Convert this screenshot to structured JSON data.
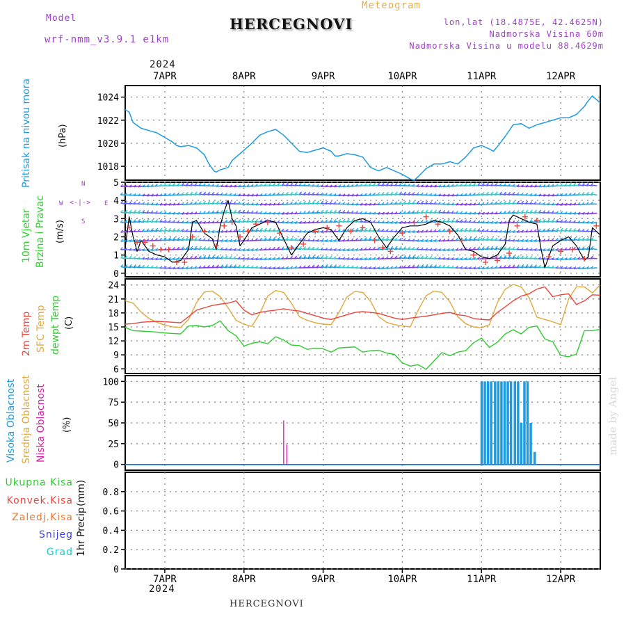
{
  "header": {
    "model_label": "Model",
    "model_name": "wrf-nmm_v3.9.1 e1km",
    "station_title": "HERCEGNOVI",
    "product": "Meteogram",
    "lonlat": "lon,lat (18.4875E, 42.4625N)",
    "elevation": "Nadmorska Visina 60m",
    "model_elevation": "Nadmorska Visina u modelu 88.4629m",
    "footer_station": "HERCEGNOVI",
    "credit": "made by Angel"
  },
  "colors": {
    "pressure": "#1e9be0",
    "temp2m": "#e8453c",
    "sfc_temp": "#e0a83c",
    "dewpt": "#2fcc2f",
    "cloud_high": "#1e9be0",
    "cloud_mid": "#e0a83c",
    "cloud_low": "#d21ea0",
    "rain_total": "#2fcc2f",
    "rain_conv": "#e8453c",
    "rain_frz": "#f07830",
    "snow": "#4040e0",
    "hail": "#20c8c8",
    "wind_line": "#000000",
    "gust_marker": "#e8453c"
  },
  "chart_data": [
    {
      "type": "line",
      "panel": "pressure",
      "ylabel": "Pritisak na nivou mora",
      "unit": "(hPa)",
      "ylim": [
        1016.8,
        1025.0
      ],
      "yticks": [
        1018,
        1020,
        1022,
        1024
      ],
      "grid": true,
      "x_top_year": "2024",
      "x_ticks": [
        "7APR",
        "8APR",
        "9APR",
        "10APR",
        "11APR",
        "12APR"
      ],
      "x_range_days": [
        6.5,
        12.5
      ],
      "series": [
        {
          "x": [
            6.5,
            6.55,
            6.6,
            6.7,
            6.8,
            6.9,
            7.0,
            7.1,
            7.15,
            7.2,
            7.3,
            7.4,
            7.5,
            7.55,
            7.62,
            7.65,
            7.7,
            7.8,
            7.85,
            7.9,
            8.0,
            8.1,
            8.2,
            8.3,
            8.4,
            8.5,
            8.6,
            8.7,
            8.8,
            8.9,
            9.0,
            9.1,
            9.15,
            9.2,
            9.3,
            9.4,
            9.5,
            9.6,
            9.7,
            9.8,
            9.9,
            10.0,
            10.1,
            10.15,
            10.2,
            10.3,
            10.4,
            10.5,
            10.6,
            10.7,
            10.8,
            10.9,
            11.0,
            11.1,
            11.15,
            11.2,
            11.3,
            11.4,
            11.5,
            11.6,
            11.7,
            11.8,
            11.9,
            12.0,
            12.1,
            12.2,
            12.3,
            12.35,
            12.4,
            12.5
          ],
          "values": [
            1022.9,
            1022.7,
            1021.8,
            1021.3,
            1021.1,
            1020.9,
            1020.5,
            1020.1,
            1019.8,
            1019.7,
            1019.8,
            1019.6,
            1019.0,
            1018.3,
            1017.6,
            1017.5,
            1017.7,
            1017.9,
            1018.5,
            1018.8,
            1019.4,
            1020.0,
            1020.7,
            1021.0,
            1021.2,
            1020.7,
            1020.0,
            1019.3,
            1019.2,
            1019.4,
            1019.6,
            1019.3,
            1018.9,
            1018.9,
            1019.1,
            1019.0,
            1018.8,
            1017.9,
            1017.6,
            1017.9,
            1017.6,
            1017.3,
            1016.9,
            1016.8,
            1017.1,
            1017.8,
            1018.2,
            1018.2,
            1018.4,
            1018.2,
            1018.8,
            1019.6,
            1019.8,
            1019.5,
            1019.3,
            1019.7,
            1020.6,
            1021.6,
            1021.7,
            1021.3,
            1021.6,
            1021.8,
            1022.0,
            1022.2,
            1022.2,
            1022.5,
            1023.2,
            1023.7,
            1024.1,
            1023.5
          ]
        }
      ]
    },
    {
      "type": "line",
      "panel": "wind",
      "ylabel": "10m Vjetar",
      "ylabel2": "Brzina i Pravac",
      "unit": "(m/s)",
      "compass": {
        "north": "N",
        "south": "S",
        "west": "W",
        "east": "E"
      },
      "ylim": [
        -0.2,
        5.0
      ],
      "yticks": [
        0,
        1,
        2,
        3,
        4,
        5
      ],
      "grid": true,
      "series": [
        {
          "name": "speed",
          "x": [
            6.5,
            6.55,
            6.6,
            6.65,
            6.7,
            6.8,
            6.9,
            7.0,
            7.1,
            7.2,
            7.3,
            7.35,
            7.4,
            7.5,
            7.6,
            7.65,
            7.7,
            7.75,
            7.8,
            7.85,
            7.9,
            7.95,
            8.0,
            8.1,
            8.2,
            8.3,
            8.4,
            8.5,
            8.6,
            8.7,
            8.8,
            8.9,
            9.0,
            9.1,
            9.2,
            9.3,
            9.4,
            9.5,
            9.6,
            9.7,
            9.8,
            9.9,
            10.0,
            10.1,
            10.2,
            10.3,
            10.4,
            10.5,
            10.6,
            10.7,
            10.8,
            10.9,
            11.0,
            11.1,
            11.2,
            11.3,
            11.35,
            11.4,
            11.5,
            11.6,
            11.7,
            11.75,
            11.8,
            11.9,
            12.0,
            12.1,
            12.2,
            12.3,
            12.35,
            12.4,
            12.5
          ],
          "values": [
            1.4,
            3.1,
            2.0,
            1.2,
            1.8,
            1.2,
            1.0,
            0.9,
            0.6,
            0.7,
            1.3,
            2.8,
            2.9,
            2.2,
            1.9,
            1.3,
            2.6,
            3.4,
            4.0,
            3.0,
            2.6,
            1.5,
            1.8,
            2.5,
            2.7,
            2.9,
            2.8,
            1.9,
            1.0,
            1.6,
            2.2,
            2.4,
            2.5,
            2.4,
            1.8,
            2.5,
            2.9,
            3.0,
            2.8,
            2.0,
            1.4,
            2.0,
            2.5,
            2.6,
            2.6,
            2.7,
            2.9,
            2.8,
            2.6,
            2.1,
            1.3,
            1.2,
            0.9,
            0.8,
            1.0,
            1.6,
            2.9,
            3.2,
            3.0,
            2.8,
            2.7,
            1.4,
            0.3,
            1.5,
            1.8,
            2.0,
            1.5,
            0.7,
            0.9,
            2.5,
            2.1
          ]
        },
        {
          "name": "gust",
          "x": [
            6.55,
            6.65,
            6.75,
            6.85,
            6.95,
            7.05,
            7.15,
            7.25,
            7.35,
            7.5,
            7.65,
            7.75,
            7.85,
            7.95,
            8.05,
            8.15,
            8.3,
            8.45,
            8.6,
            8.75,
            8.9,
            9.05,
            9.2,
            9.35,
            9.5,
            9.65,
            9.75,
            9.85,
            10.0,
            10.15,
            10.3,
            10.45,
            10.6,
            10.75,
            10.9,
            11.05,
            11.2,
            11.35,
            11.45,
            11.55,
            11.7,
            11.85,
            12.0,
            12.15,
            12.3,
            12.45
          ],
          "values": [
            2.5,
            1.7,
            1.7,
            1.5,
            1.3,
            1.3,
            0.6,
            0.6,
            2.0,
            2.3,
            1.5,
            2.6,
            2.8,
            2.0,
            2.3,
            2.7,
            2.8,
            2.2,
            1.4,
            1.6,
            2.3,
            2.5,
            2.6,
            2.3,
            2.5,
            1.8,
            1.4,
            1.2,
            2.2,
            2.8,
            3.1,
            2.7,
            2.3,
            1.8,
            1.0,
            0.6,
            0.7,
            1.1,
            2.6,
            3.1,
            2.9,
            0.9,
            1.2,
            1.3,
            0.8,
            2.6
          ]
        }
      ]
    },
    {
      "type": "line",
      "panel": "temperature",
      "ylabel": "2m Temp",
      "ylabel2": "SFC Temp",
      "ylabel3": "dewpt Temp",
      "unit": "(C)",
      "ylim": [
        5.0,
        25.3
      ],
      "yticks": [
        6,
        9,
        12,
        15,
        18,
        21,
        24
      ],
      "grid": true,
      "series": [
        {
          "name": "2m Temp",
          "x": [
            6.5,
            6.6,
            6.7,
            6.8,
            6.9,
            7.0,
            7.1,
            7.2,
            7.3,
            7.4,
            7.5,
            7.6,
            7.7,
            7.8,
            7.9,
            8.0,
            8.1,
            8.2,
            8.3,
            8.4,
            8.5,
            8.6,
            8.7,
            8.8,
            8.9,
            9.0,
            9.1,
            9.2,
            9.3,
            9.4,
            9.5,
            9.6,
            9.7,
            9.8,
            9.9,
            10.0,
            10.1,
            10.2,
            10.3,
            10.4,
            10.5,
            10.6,
            10.7,
            10.8,
            10.9,
            11.0,
            11.1,
            11.2,
            11.3,
            11.4,
            11.5,
            11.6,
            11.7,
            11.8,
            11.9,
            12.0,
            12.1,
            12.2,
            12.3,
            12.4,
            12.5
          ],
          "values": [
            15.6,
            15.7,
            16.0,
            16.1,
            16.2,
            16.1,
            16.0,
            15.9,
            17.2,
            18.6,
            19.1,
            19.6,
            19.9,
            20.1,
            20.6,
            18.6,
            17.6,
            18.1,
            18.4,
            18.6,
            18.9,
            18.6,
            18.4,
            17.9,
            17.4,
            16.9,
            16.6,
            17.1,
            17.6,
            18.1,
            18.3,
            18.1,
            17.9,
            17.4,
            16.9,
            16.6,
            16.9,
            17.1,
            17.3,
            17.6,
            17.9,
            18.1,
            17.6,
            17.4,
            16.8,
            16.6,
            16.5,
            18.1,
            19.3,
            20.6,
            21.6,
            22.1,
            23.1,
            23.6,
            21.5,
            21.9,
            22.1,
            19.8,
            20.6,
            21.9,
            21.8
          ]
        },
        {
          "name": "SFC Temp",
          "x": [
            6.5,
            6.6,
            6.7,
            6.8,
            6.9,
            7.0,
            7.1,
            7.2,
            7.3,
            7.4,
            7.5,
            7.6,
            7.7,
            7.8,
            7.9,
            8.0,
            8.1,
            8.2,
            8.3,
            8.4,
            8.5,
            8.6,
            8.7,
            8.8,
            8.9,
            9.0,
            9.1,
            9.2,
            9.3,
            9.4,
            9.5,
            9.6,
            9.7,
            9.8,
            9.9,
            10.0,
            10.1,
            10.2,
            10.3,
            10.4,
            10.5,
            10.6,
            10.7,
            10.8,
            10.9,
            11.0,
            11.1,
            11.2,
            11.3,
            11.4,
            11.5,
            11.6,
            11.7,
            11.8,
            11.9,
            12.0,
            12.1,
            12.2,
            12.3,
            12.4,
            12.5
          ],
          "values": [
            20.6,
            20.1,
            18.2,
            16.8,
            16.0,
            15.4,
            15.0,
            14.9,
            16.6,
            20.2,
            22.5,
            22.7,
            21.5,
            19.1,
            16.4,
            15.6,
            15.1,
            17.9,
            21.6,
            22.8,
            22.4,
            20.1,
            17.2,
            16.4,
            15.9,
            15.6,
            15.5,
            18.1,
            21.4,
            22.6,
            22.4,
            20.5,
            17.2,
            16.0,
            15.5,
            15.2,
            15.0,
            18.6,
            21.7,
            22.7,
            22.4,
            20.4,
            17.2,
            15.7,
            15.0,
            14.8,
            15.5,
            20.2,
            23.1,
            24.1,
            23.6,
            21.3,
            17.1,
            16.6,
            16.1,
            15.5,
            21.0,
            23.6,
            23.6,
            22.3,
            24.0
          ]
        },
        {
          "name": "dewpt Temp",
          "x": [
            6.5,
            6.6,
            6.7,
            6.8,
            6.9,
            7.0,
            7.1,
            7.2,
            7.3,
            7.4,
            7.5,
            7.6,
            7.7,
            7.8,
            7.9,
            8.0,
            8.1,
            8.2,
            8.3,
            8.4,
            8.5,
            8.6,
            8.7,
            8.8,
            8.9,
            9.0,
            9.1,
            9.2,
            9.3,
            9.4,
            9.5,
            9.6,
            9.7,
            9.8,
            9.9,
            10.0,
            10.1,
            10.2,
            10.3,
            10.4,
            10.5,
            10.6,
            10.7,
            10.8,
            10.9,
            11.0,
            11.1,
            11.2,
            11.3,
            11.4,
            11.5,
            11.6,
            11.7,
            11.8,
            11.9,
            12.0,
            12.1,
            12.2,
            12.3,
            12.4,
            12.5
          ],
          "values": [
            14.9,
            14.2,
            14.1,
            14.0,
            13.9,
            13.7,
            13.6,
            13.5,
            15.2,
            15.3,
            15.0,
            15.3,
            16.3,
            14.2,
            13.1,
            10.9,
            11.5,
            11.8,
            11.4,
            12.9,
            12.2,
            11.1,
            11.0,
            10.2,
            10.4,
            10.3,
            9.6,
            10.5,
            10.6,
            10.7,
            9.6,
            9.9,
            10.0,
            9.4,
            9.1,
            7.3,
            6.6,
            6.9,
            5.9,
            7.7,
            9.5,
            8.8,
            9.6,
            9.9,
            11.6,
            12.6,
            10.6,
            11.7,
            13.5,
            14.4,
            13.5,
            14.9,
            15.2,
            12.4,
            11.8,
            8.9,
            8.6,
            9.2,
            14.2,
            14.2,
            14.5
          ]
        }
      ]
    },
    {
      "type": "bar",
      "panel": "cloud",
      "ylabel": "Visoka Oblacnost",
      "ylabel2": "Srednja Oblacnost",
      "ylabel3": "Niska Oblacnost",
      "unit": "(%)",
      "ylim": [
        -7,
        107
      ],
      "yticks": [
        0,
        25,
        50,
        75,
        100
      ],
      "grid": true,
      "series": [
        {
          "name": "Visoka Oblacnost",
          "x": [
            11.0,
            11.04,
            11.08,
            11.12,
            11.17,
            11.21,
            11.25,
            11.29,
            11.33,
            11.37,
            11.42,
            11.46,
            11.5,
            11.54,
            11.58,
            11.62,
            11.67
          ],
          "values": [
            100,
            100,
            100,
            100,
            100,
            100,
            100,
            100,
            100,
            100,
            100,
            100,
            50,
            100,
            100,
            50,
            15
          ]
        },
        {
          "name": "Niska Oblacnost",
          "x": [
            8.5,
            8.54
          ],
          "values": [
            53,
            24
          ]
        }
      ]
    },
    {
      "type": "bar",
      "panel": "precip",
      "legend": [
        "Ukupna Kisa",
        "Konvek.Kisa",
        "Zaledj.Kisa",
        "Snijeg",
        "Grad"
      ],
      "ylabel": "1hr Precip",
      "unit": "(mm)",
      "ylim": [
        0,
        1.0
      ],
      "yticks": [
        "0",
        "0.2",
        "0.4",
        "0.6",
        "0.8"
      ],
      "grid": true,
      "x_bottom_year": "2024",
      "series": []
    }
  ]
}
